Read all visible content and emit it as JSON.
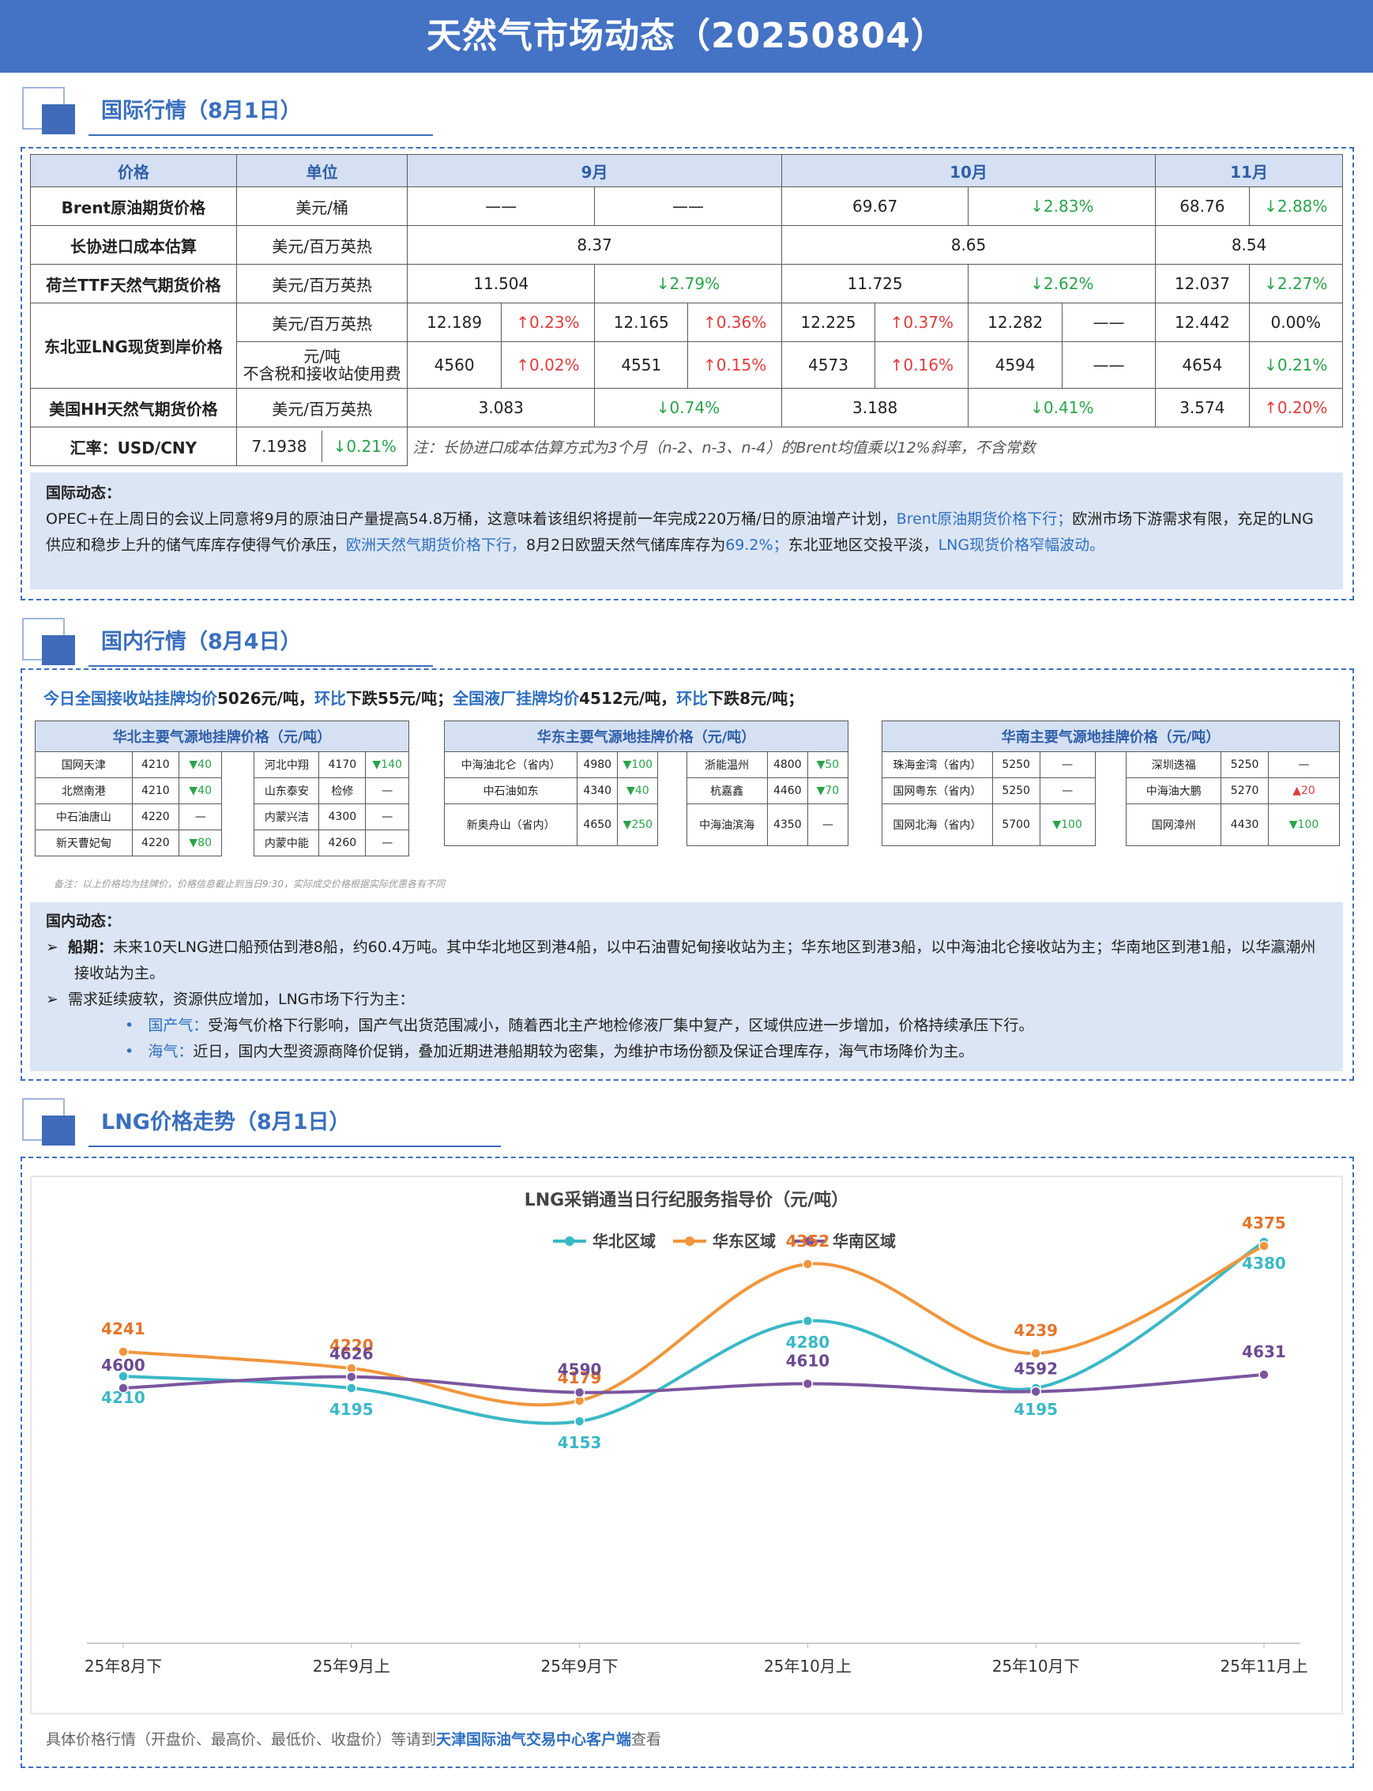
{
  "title": "天然气市场动态（20250804）",
  "sections": {
    "intl": "国际行情（8月1日）",
    "domestic": "国内行情（8月4日）",
    "trend": "LNG价格走势（8月1日）"
  },
  "intl_table": {
    "headers": [
      "价格",
      "单位",
      "9月",
      "10月",
      "11月"
    ],
    "brent": {
      "name": "Brent原油期货价格",
      "unit": "美元/桶",
      "sep_a": "——",
      "sep_b": "——",
      "oct_val": "69.67",
      "oct_chg": "↓2.83%",
      "nov_val": "68.76",
      "nov_chg": "↓2.88%"
    },
    "changxie": {
      "name": "长协进口成本估算",
      "unit": "美元/百万英热",
      "sep": "8.37",
      "oct": "8.65",
      "nov": "8.54"
    },
    "ttf": {
      "name": "荷兰TTF天然气期货价格",
      "unit": "美元/百万英热",
      "sep_val": "11.504",
      "sep_chg": "↓2.79%",
      "oct_val": "11.725",
      "oct_chg": "↓2.62%",
      "nov_val": "12.037",
      "nov_chg": "↓2.27%"
    },
    "ne_asia": {
      "name": "东北亚LNG现货到岸价格",
      "unit1": "美元/百万英热",
      "unit2a": "元/吨",
      "unit2b": "不含税和接收站使用费",
      "r1": [
        "12.189",
        "↑0.23%",
        "12.165",
        "↑0.36%",
        "12.225",
        "↑0.37%",
        "12.282",
        "——",
        "12.442",
        "0.00%"
      ],
      "r2": [
        "4560",
        "↑0.02%",
        "4551",
        "↑0.15%",
        "4573",
        "↑0.16%",
        "4594",
        "——",
        "4654",
        "↓0.21%"
      ]
    },
    "hh": {
      "name": "美国HH天然气期货价格",
      "unit": "美元/百万英热",
      "sep_val": "3.083",
      "sep_chg": "↓0.74%",
      "oct_val": "3.188",
      "oct_chg": "↓0.41%",
      "nov_val": "3.574",
      "nov_chg": "↑0.20%"
    },
    "fx": {
      "name": "汇率：USD/CNY",
      "val": "7.1938",
      "chg": "↓0.21%"
    },
    "note": "注：长协进口成本估算方式为3个月（n-2、n-3、n-4）的Brent均值乘以12%斜率，不含常数"
  },
  "intl_news": {
    "heading": "国际动态：",
    "p1": "OPEC+在上周日的会议上同意将9月的原油日产量提高54.8万桶，这意味着该组织将提前一年完成220万桶/日的原油增产计划，",
    "h1": "Brent原油期货价格下行；",
    "p2": "欧洲市场下游需求有限，充足的LNG供应和稳步上升的储气库库存使得气价承压，",
    "h2": "欧洲天然气期货价格下行，",
    "p3": "8月2日欧盟天然气储库库存为",
    "h3": "69.2%；",
    "p4": "东北亚地区交投平淡，",
    "h4": "LNG现货价格窄幅波动。"
  },
  "summary": {
    "s1": "今日全国接收站挂牌均价",
    "s2": "5026元/吨，",
    "s3": "环比",
    "s4": "下跌55元/吨；",
    "s5": "全国液厂挂牌均价",
    "s6": "4512元/吨，",
    "s7": "环比",
    "s8": "下跌8元/吨；"
  },
  "huabei": {
    "title": "华北主要气源地挂牌价格（元/吨）",
    "rows": [
      [
        "国网天津",
        "4210",
        "▼40",
        "河北中翔",
        "4170",
        "▼140"
      ],
      [
        "北燃南港",
        "4210",
        "▼40",
        "山东泰安",
        "检修",
        "—"
      ],
      [
        "中石油唐山",
        "4220",
        "—",
        "内蒙兴洁",
        "4300",
        "—"
      ],
      [
        "新天曹妃甸",
        "4220",
        "▼80",
        "内蒙中能",
        "4260",
        "—"
      ]
    ]
  },
  "huadong": {
    "title": "华东主要气源地挂牌价格（元/吨）",
    "rows": [
      [
        "中海油北仑（省内）",
        "4980",
        "▼100",
        "浙能温州",
        "4800",
        "▼50"
      ],
      [
        "中石油如东",
        "4340",
        "▼40",
        "杭嘉鑫",
        "4460",
        "▼70"
      ],
      [
        "新奥舟山（省内）",
        "4650",
        "▼250",
        "中海油滨海",
        "4350",
        "—"
      ]
    ]
  },
  "huanan": {
    "title": "华南主要气源地挂牌价格（元/吨）",
    "rows": [
      [
        "珠海金湾（省内）",
        "5250",
        "—",
        "深圳迭福",
        "5250",
        "—"
      ],
      [
        "国网粤东（省内）",
        "5250",
        "—",
        "中海油大鹏",
        "5270",
        "▲20"
      ],
      [
        "国网北海（省内）",
        "5700",
        "▼100",
        "国网漳州",
        "4430",
        "▼100"
      ]
    ]
  },
  "small_note": "备注：以上价格均为挂牌价，价格信息截止到当日9:30，实际成交价格根据实际优惠各有不同",
  "dom_news": {
    "heading": "国内动态：",
    "b1_label": "船期：",
    "b1": "未来10天LNG进口船预估到港8船，约60.4万吨。其中华北地区到港4船，以中石油曹妃甸接收站为主；华东地区到港3船，以中海油北仑接收站为主；华南地区到港1船，以华瀛潮州接收站为主。",
    "b2": "需求延续疲软，资源供应增加，LNG市场下行为主：",
    "s1_label": "国产气：",
    "s1": "受海气价格下行影响，国产气出货范围减小，随着西北主产地检修液厂集中复产，区域供应进一步增加，价格持续承压下行。",
    "s2_label": "海气：",
    "s2": "近日，国内大型资源商降价促销，叠加近期进港船期较为密集，为维护市场份额及保证合理库存，海气市场降价为主。"
  },
  "chart_data": {
    "type": "line",
    "title": "LNG采销通当日行纪服务指导价（元/吨）",
    "categories": [
      "25年8月下",
      "25年9月上",
      "25年9月下",
      "25年10月上",
      "25年10月下",
      "25年11月上"
    ],
    "series": [
      {
        "name": "华北区域",
        "color": "#3bb8c6",
        "values": [
          4210,
          4195,
          4153,
          4280,
          4195,
          4380
        ]
      },
      {
        "name": "华东区域",
        "color": "#f0963d",
        "values": [
          4241,
          4220,
          4179,
          4352,
          4239,
          4375
        ]
      },
      {
        "name": "华南区域",
        "color": "#7b569e",
        "values": [
          4600,
          4626,
          4590,
          4610,
          4592,
          4631
        ]
      }
    ],
    "label_colors": {
      "华北区域": "#3bb8c6",
      "华东区域": "#e4742a",
      "华南区域": "#6b4a92"
    },
    "legend": "top",
    "grid": false
  },
  "footer": {
    "f1": "具体价格行情（开盘价、最高价、最低价、收盘价）等请到",
    "f2": "天津国际油气交易中心客户端",
    "f3": "查看"
  }
}
